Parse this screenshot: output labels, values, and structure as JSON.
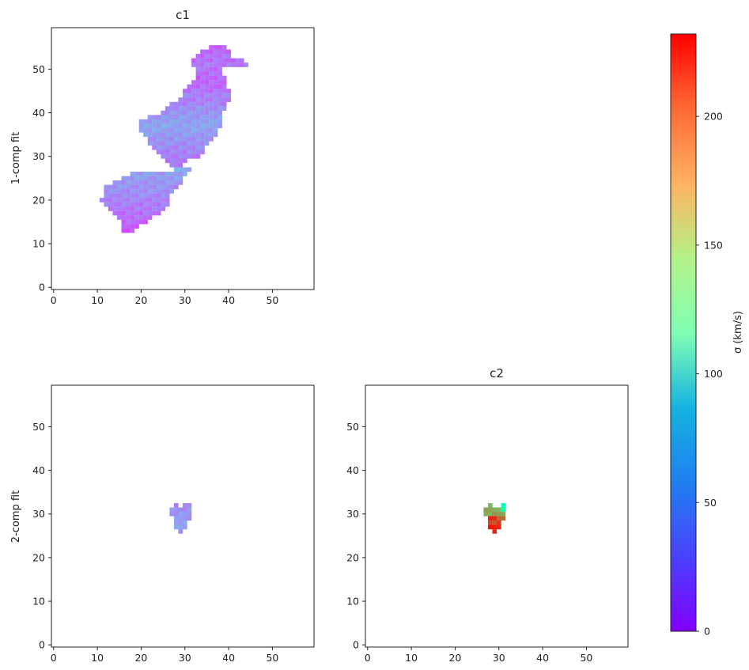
{
  "figure": {
    "colorbar_label": "σ (km/s)",
    "colorbar_ticks": [
      0,
      50,
      100,
      150,
      200
    ],
    "colorbar_range": [
      0,
      232
    ],
    "colormap": "rainbow"
  },
  "chart_data": [
    {
      "type": "heatmap",
      "title": "c1",
      "ylabel": "1-comp fit",
      "xlabel": "",
      "xlim": [
        -0.5,
        59.5
      ],
      "ylim": [
        -0.5,
        59.5
      ],
      "xticks": [
        0,
        10,
        20,
        30,
        40,
        50
      ],
      "yticks": [
        0,
        10,
        20,
        30,
        40,
        50
      ],
      "note": "pixel map; values in σ (km/s), each row = [y, x_start, x_end, sigma]",
      "rows": [
        [
          55,
          36,
          39,
          30
        ],
        [
          54,
          34,
          40,
          32
        ],
        [
          53,
          33,
          40,
          34
        ],
        [
          52,
          32,
          43,
          33
        ],
        [
          51,
          32,
          44,
          36
        ],
        [
          50,
          33,
          38,
          34
        ],
        [
          49,
          33,
          38,
          33
        ],
        [
          48,
          33,
          39,
          31
        ],
        [
          47,
          32,
          39,
          30
        ],
        [
          46,
          31,
          39,
          32
        ],
        [
          45,
          30,
          40,
          35
        ],
        [
          44,
          30,
          40,
          40
        ],
        [
          43,
          29,
          40,
          38
        ],
        [
          42,
          27,
          39,
          41
        ],
        [
          41,
          26,
          39,
          44
        ],
        [
          40,
          25,
          38,
          46
        ],
        [
          39,
          22,
          38,
          48
        ],
        [
          38,
          20,
          38,
          50
        ],
        [
          37,
          20,
          38,
          52
        ],
        [
          36,
          20,
          37,
          50
        ],
        [
          35,
          21,
          37,
          48
        ],
        [
          34,
          22,
          36,
          46
        ],
        [
          33,
          22,
          35,
          44
        ],
        [
          32,
          23,
          34,
          42
        ],
        [
          31,
          24,
          34,
          40
        ],
        [
          30,
          25,
          33,
          38
        ],
        [
          29,
          26,
          33,
          36
        ],
        [
          28,
          27,
          32,
          40
        ],
        [
          27,
          28,
          31,
          55
        ],
        [
          26,
          18,
          30,
          50
        ],
        [
          25,
          16,
          29,
          48
        ],
        [
          24,
          14,
          29,
          46
        ],
        [
          23,
          12,
          28,
          45
        ],
        [
          22,
          12,
          27,
          44
        ],
        [
          21,
          12,
          26,
          42
        ],
        [
          20,
          11,
          26,
          40
        ],
        [
          19,
          12,
          26,
          38
        ],
        [
          18,
          13,
          25,
          36
        ],
        [
          17,
          14,
          24,
          34
        ],
        [
          16,
          15,
          22,
          32
        ],
        [
          15,
          16,
          21,
          30
        ],
        [
          14,
          16,
          19,
          28
        ],
        [
          13,
          16,
          18,
          26
        ]
      ],
      "holes": [
        [
          28,
          30,
          32
        ],
        [
          29,
          31,
          33
        ]
      ]
    },
    {
      "type": "heatmap",
      "title": "",
      "ylabel": "2-comp fit",
      "xlabel": "",
      "xlim": [
        -0.5,
        59.5
      ],
      "ylim": [
        -0.5,
        59.5
      ],
      "xticks": [
        0,
        10,
        20,
        30,
        40,
        50
      ],
      "yticks": [
        0,
        10,
        20,
        30,
        40,
        50
      ],
      "rows": [
        [
          32,
          28,
          28,
          45
        ],
        [
          32,
          30,
          31,
          42
        ],
        [
          31,
          27,
          31,
          44
        ],
        [
          30,
          27,
          31,
          46
        ],
        [
          29,
          28,
          31,
          48
        ],
        [
          28,
          28,
          30,
          52
        ],
        [
          27,
          28,
          30,
          50
        ],
        [
          26,
          29,
          29,
          48
        ]
      ]
    },
    {
      "type": "heatmap",
      "title": "c2",
      "ylabel": "",
      "xlabel": "",
      "xlim": [
        -0.5,
        59.5
      ],
      "ylim": [
        -0.5,
        59.5
      ],
      "xticks": [
        0,
        10,
        20,
        30,
        40,
        50
      ],
      "yticks": [
        0,
        10,
        20,
        30,
        40,
        50
      ],
      "rows": [
        [
          32,
          28,
          28,
          175
        ],
        [
          32,
          31,
          31,
          115
        ],
        [
          31,
          27,
          30,
          178
        ],
        [
          31,
          31,
          31,
          120
        ],
        [
          30,
          27,
          31,
          180
        ],
        [
          29,
          28,
          29,
          220
        ],
        [
          29,
          30,
          31,
          205
        ],
        [
          28,
          28,
          30,
          212
        ],
        [
          27,
          28,
          30,
          222
        ],
        [
          26,
          29,
          29,
          225
        ]
      ]
    }
  ]
}
